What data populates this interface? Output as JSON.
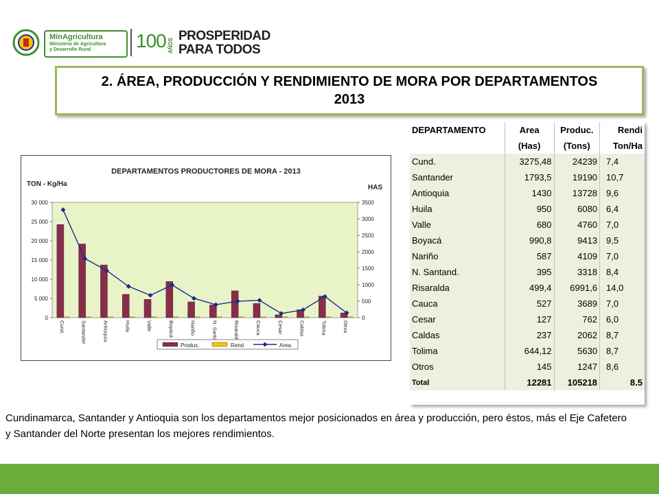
{
  "header": {
    "ministry_name": "MinAgricultura",
    "ministry_sub1": "Ministerio de Agricultura",
    "ministry_sub2": "y Desarrollo Rural",
    "anniversary_number": "100",
    "anniversary_label": "AÑOS",
    "slogan_line1": "PROSPERIDAD",
    "slogan_line2": "PARA TODOS"
  },
  "title": {
    "line1": "2. ÁREA,  PRODUCCIÓN Y RENDIMIENTO DE MORA POR DEPARTAMENTOS",
    "line2": "2013"
  },
  "chart_data": {
    "type": "bar",
    "title": "DEPARTAMENTOS PRODUCTORES DE MORA - 2013",
    "ylabel_left": "TON - Kg/Ha",
    "ylabel_right": "HAS",
    "categories": [
      "Cund.",
      "Santander",
      "Antioquia",
      "Huila",
      "Valle",
      "Boyacá",
      "Nariño",
      "N. Santand.",
      "Risaralda",
      "Cauca",
      "Cesar",
      "Caldas",
      "Tolima",
      "Otros"
    ],
    "left_axis": {
      "min": 0,
      "max": 30000,
      "ticks": [
        0,
        5000,
        10000,
        15000,
        20000,
        25000,
        30000
      ],
      "tick_labels": [
        "0",
        "5 000",
        "10 000",
        "15 000",
        "20 000",
        "25 000",
        "30 000"
      ]
    },
    "right_axis": {
      "min": 0,
      "max": 3500,
      "ticks": [
        0,
        500,
        1000,
        1500,
        2000,
        2500,
        3000,
        3500
      ],
      "tick_labels": [
        "0",
        "500",
        "1000",
        "1500",
        "2000",
        "2500",
        "3000",
        "3500"
      ]
    },
    "series": [
      {
        "name": "Produc.",
        "kind": "bar",
        "axis": "left",
        "color": "#8b2c4c",
        "values": [
          24239,
          19190,
          13728,
          6080,
          4760,
          9413,
          4109,
          3318,
          6991.6,
          3689,
          762,
          2062,
          5630,
          1247
        ]
      },
      {
        "name": "Rend",
        "kind": "bar",
        "axis": "left",
        "color": "#f2c400",
        "values": [
          7.4,
          10.7,
          9.6,
          6.4,
          7.0,
          9.5,
          7.0,
          8.4,
          14.0,
          7.0,
          6.0,
          8.7,
          8.7,
          8.6
        ]
      },
      {
        "name": "Area",
        "kind": "line",
        "axis": "right",
        "color": "#1f2a8a",
        "values": [
          3275.48,
          1793.5,
          1430,
          950,
          680,
          990.8,
          587,
          395,
          499.4,
          527,
          127,
          237,
          644.12,
          145
        ]
      }
    ],
    "legend_position": "bottom",
    "plot_background": "#e8f4c8"
  },
  "table": {
    "headers_row1": [
      "DEPARTAMENTO",
      "Area",
      "Produc.",
      "Rendi"
    ],
    "headers_row2": [
      "",
      "(Has)",
      "(Tons)",
      "Ton/Ha"
    ],
    "rows": [
      [
        "Cund.",
        "3275,48",
        "24239",
        "7,4"
      ],
      [
        "Santander",
        "1793,5",
        "19190",
        "10,7"
      ],
      [
        "Antioquia",
        "1430",
        "13728",
        "9,6"
      ],
      [
        "Huila",
        "950",
        "6080",
        "6,4"
      ],
      [
        "Valle",
        "680",
        "4760",
        "7,0"
      ],
      [
        "Boyacá",
        "990,8",
        "9413",
        "9,5"
      ],
      [
        "Nariño",
        "587",
        "4109",
        "7,0"
      ],
      [
        "N. Santand.",
        "395",
        "3318",
        "8,4"
      ],
      [
        "Risaralda",
        "499,4",
        "6991,6",
        "14,0"
      ],
      [
        "Cauca",
        "527",
        "3689",
        "7,0"
      ],
      [
        "Cesar",
        "127",
        "762",
        "6,0"
      ],
      [
        "Caldas",
        "237",
        "2062",
        "8,7"
      ],
      [
        "Tolima",
        "644,12",
        "5630",
        "8,7"
      ],
      [
        "Otros",
        "145",
        "1247",
        "8,6"
      ]
    ],
    "total": [
      "Total",
      "12281",
      "105218",
      "8.5"
    ]
  },
  "paragraph": "Cundinamarca, Santander y Antioquia son los departamentos mejor posicionados en área y producción, pero éstos, más el Eje Cafetero y Santander del Norte presentan los mejores rendimientos.",
  "colors": {
    "accent_green": "#9bbb59",
    "bottom_bar": "#6aad3b",
    "table_fill": "#ebf1de"
  }
}
